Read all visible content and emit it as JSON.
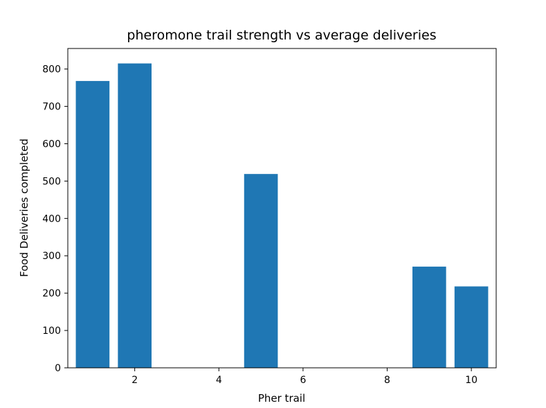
{
  "chart_data": {
    "type": "bar",
    "title": "pheromone trail strength vs average deliveries",
    "xlabel": "Pher trail",
    "ylabel": "Food Deliveries completed",
    "x": [
      1,
      2,
      5,
      9,
      10
    ],
    "values": [
      768,
      815,
      519,
      271,
      218
    ],
    "bar_width": 0.8,
    "xlim": [
      0.41,
      10.59
    ],
    "ylim": [
      0,
      855
    ],
    "xticks": [
      2,
      4,
      6,
      8,
      10
    ],
    "yticks": [
      0,
      100,
      200,
      300,
      400,
      500,
      600,
      700,
      800
    ],
    "bar_color": "#1f77b4",
    "grid": false,
    "legend": "none"
  }
}
